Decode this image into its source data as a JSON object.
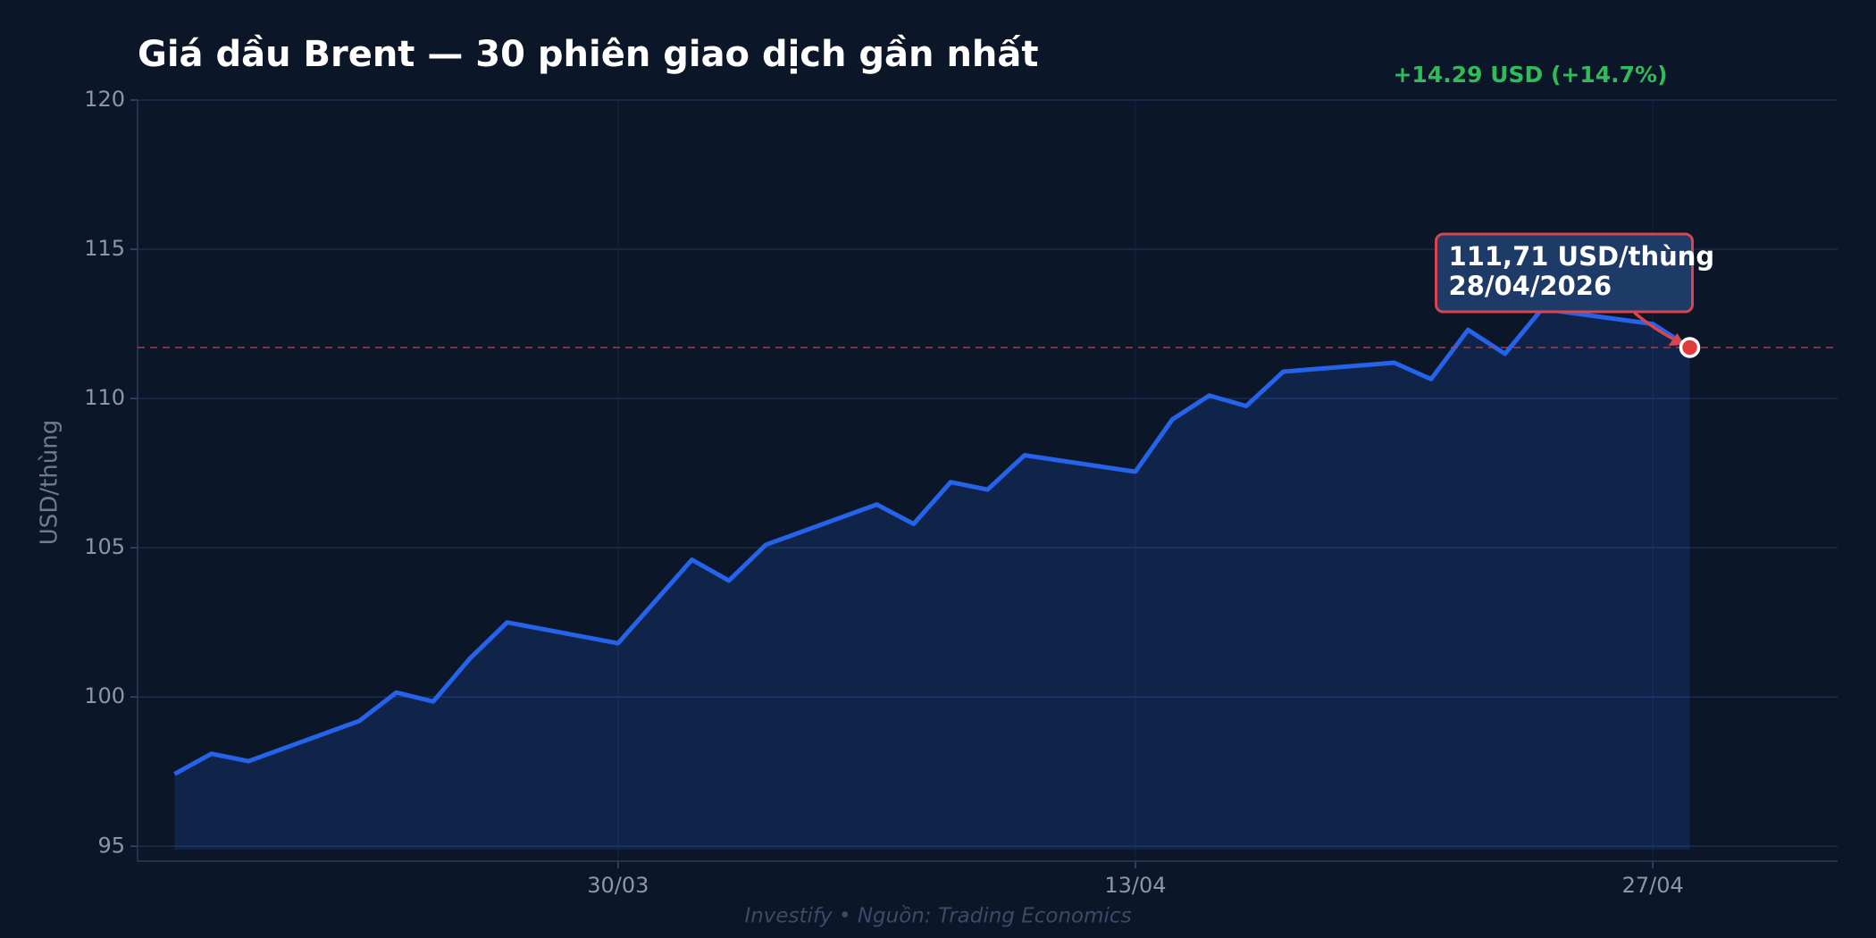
{
  "chart_data": {
    "type": "line",
    "title": "Giá dầu Brent — 30 phiên giao dịch gần nhất",
    "change_label": "+14.29 USD (+14.7%)",
    "y_label": "USD/thùng",
    "footer": "Investify  •  Nguồn: Trading Economics",
    "annotation": [
      "111,71 USD/thùng",
      "28/04/2026"
    ],
    "x": [
      "18/03",
      "19/03",
      "20/03",
      "23/03",
      "24/03",
      "25/03",
      "26/03",
      "27/03",
      "30/03",
      "31/03",
      "01/04",
      "02/04",
      "03/04",
      "06/04",
      "07/04",
      "08/04",
      "09/04",
      "10/04",
      "13/04",
      "14/04",
      "15/04",
      "16/04",
      "17/04",
      "20/04",
      "21/04",
      "22/04",
      "23/04",
      "24/04",
      "27/04",
      "28/04"
    ],
    "series": [
      {
        "name": "Brent",
        "color": "#2563eb",
        "values": [
          97.42,
          98.1,
          97.85,
          99.2,
          100.15,
          99.85,
          101.3,
          102.5,
          101.8,
          103.2,
          104.6,
          103.9,
          105.1,
          106.45,
          105.8,
          107.2,
          106.95,
          108.1,
          107.55,
          109.3,
          110.1,
          109.75,
          110.9,
          111.2,
          110.65,
          112.3,
          111.5,
          113.0,
          112.5,
          111.71
        ]
      }
    ],
    "xlim": [
      "17/03",
      "02/05"
    ],
    "xticks": [
      "30/03",
      "13/04",
      "27/04"
    ],
    "ylim": [
      94.5,
      120
    ],
    "yticks": [
      95,
      100,
      105,
      110,
      115,
      120
    ],
    "grid": true
  }
}
